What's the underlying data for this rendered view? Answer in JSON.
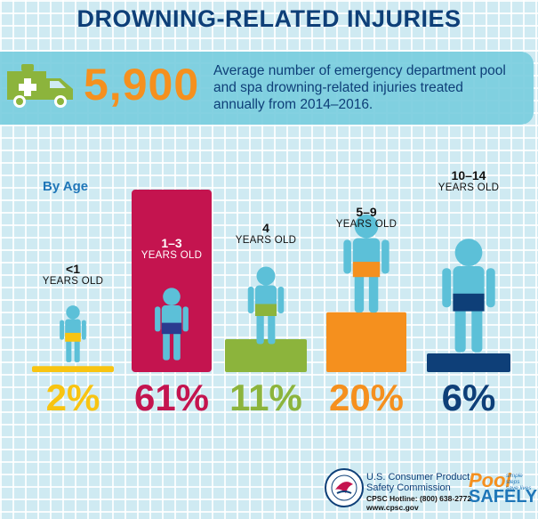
{
  "title": "DROWNING-RELATED INJURIES",
  "banner": {
    "big_number": "5,900",
    "text": "Average number of emergency department pool and spa drowning-related injuries treated annually from 2014–2016."
  },
  "section_label": "By Age",
  "chart_data": {
    "type": "bar",
    "categories": [
      "<1",
      "1–3",
      "4",
      "5–9",
      "10–14"
    ],
    "category_unit": "YEARS OLD",
    "values": [
      2,
      61,
      11,
      20,
      6
    ],
    "value_labels": [
      "2%",
      "61%",
      "11%",
      "20%",
      "6%"
    ],
    "colors": [
      "#f8c411",
      "#c4144f",
      "#8cb43c",
      "#f5901e",
      "#0e3f78"
    ],
    "title": "",
    "xlabel": "",
    "ylabel": ""
  },
  "footer": {
    "agency_line1": "U.S. Consumer Product",
    "agency_line2": "Safety Commission",
    "hotline": "CPSC Hotline: (800) 638-2772",
    "website": "www.cpsc.gov",
    "brand_pool": "Pool",
    "brand_safely": "SAFELY",
    "tagline_1": "simple steps",
    "tagline_2": "save lives"
  },
  "icons": [
    "ambulance-icon",
    "child-figure-icon",
    "cpsc-seal-icon"
  ]
}
